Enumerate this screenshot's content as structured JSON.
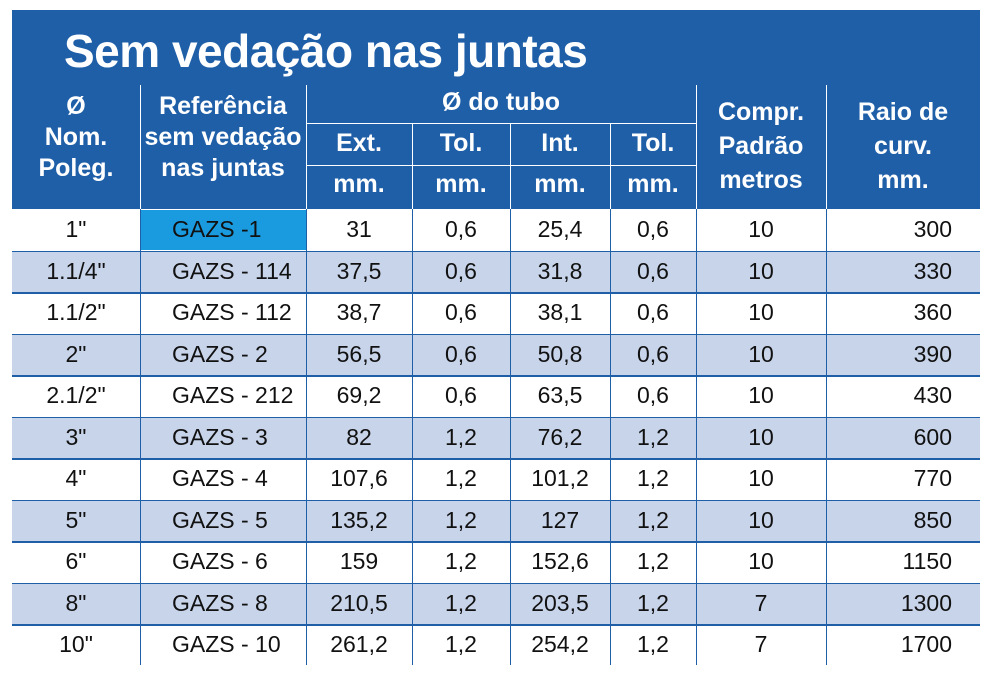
{
  "title": "Sem vedação nas juntas",
  "headers": {
    "nominal": [
      "Ø",
      "Nom.",
      "Poleg."
    ],
    "reference": [
      "Referência",
      "sem vedação",
      "nas juntas"
    ],
    "tube_group": "Ø do tubo",
    "tube_cols": [
      {
        "label": "Ext.",
        "unit": "mm."
      },
      {
        "label": "Tol.",
        "unit": "mm."
      },
      {
        "label": "Int.",
        "unit": "mm."
      },
      {
        "label": "Tol.",
        "unit": "mm."
      }
    ],
    "length": [
      "Compr.",
      "Padrão",
      "metros"
    ],
    "radius": [
      "Raio de",
      "curv.",
      "mm."
    ]
  },
  "rows": [
    {
      "nom": "1\"",
      "ref": "GAZS -1",
      "ext": "31",
      "tol1": "0,6",
      "int": "25,4",
      "tol2": "0,6",
      "len": "10",
      "radius": "300"
    },
    {
      "nom": "1.1/4\"",
      "ref": "GAZS - 114",
      "ext": "37,5",
      "tol1": "0,6",
      "int": "31,8",
      "tol2": "0,6",
      "len": "10",
      "radius": "330"
    },
    {
      "nom": "1.1/2\"",
      "ref": "GAZS - 112",
      "ext": "38,7",
      "tol1": "0,6",
      "int": "38,1",
      "tol2": "0,6",
      "len": "10",
      "radius": "360"
    },
    {
      "nom": "2\"",
      "ref": "GAZS - 2",
      "ext": "56,5",
      "tol1": "0,6",
      "int": "50,8",
      "tol2": "0,6",
      "len": "10",
      "radius": "390"
    },
    {
      "nom": "2.1/2\"",
      "ref": "GAZS - 212",
      "ext": "69,2",
      "tol1": "0,6",
      "int": "63,5",
      "tol2": "0,6",
      "len": "10",
      "radius": "430"
    },
    {
      "nom": "3\"",
      "ref": "GAZS  - 3",
      "ext": "82",
      "tol1": "1,2",
      "int": "76,2",
      "tol2": "1,2",
      "len": "10",
      "radius": "600"
    },
    {
      "nom": "4\"",
      "ref": "GAZS - 4",
      "ext": "107,6",
      "tol1": "1,2",
      "int": "101,2",
      "tol2": "1,2",
      "len": "10",
      "radius": "770"
    },
    {
      "nom": "5\"",
      "ref": "GAZS - 5",
      "ext": "135,2",
      "tol1": "1,2",
      "int": "127",
      "tol2": "1,2",
      "len": "10",
      "radius": "850"
    },
    {
      "nom": "6\"",
      "ref": "GAZS - 6",
      "ext": "159",
      "tol1": "1,2",
      "int": "152,6",
      "tol2": "1,2",
      "len": "10",
      "radius": "1150"
    },
    {
      "nom": "8\"",
      "ref": "GAZS - 8",
      "ext": "210,5",
      "tol1": "1,2",
      "int": "203,5",
      "tol2": "1,2",
      "len": "7",
      "radius": "1300"
    },
    {
      "nom": "10\"",
      "ref": "GAZS - 10",
      "ext": "261,2",
      "tol1": "1,2",
      "int": "254,2",
      "tol2": "1,2",
      "len": "7",
      "radius": "1700"
    }
  ],
  "colors": {
    "header_blue": "#1f5fa8",
    "stripe": "#c8d4ea",
    "highlight": "#1a9be0"
  }
}
